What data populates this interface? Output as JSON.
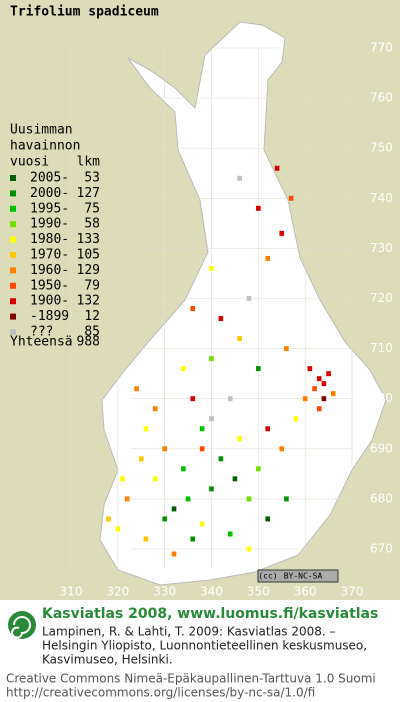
{
  "title": "Trifolium spadiceum",
  "legend": {
    "heading": [
      "Uusimman",
      "havainnon",
      "vuosi"
    ],
    "count_heading": "lkm",
    "rows": [
      {
        "label": "2005-",
        "count": 53,
        "color": "#006000"
      },
      {
        "label": "2000-",
        "count": 127,
        "color": "#009000"
      },
      {
        "label": "1995-",
        "count": 75,
        "color": "#00c000"
      },
      {
        "label": "1990-",
        "count": 58,
        "color": "#70e000"
      },
      {
        "label": "1980-",
        "count": 133,
        "color": "#ffff00"
      },
      {
        "label": "1970-",
        "count": 105,
        "color": "#ffc800"
      },
      {
        "label": "1960-",
        "count": 129,
        "color": "#ff8000"
      },
      {
        "label": "1950-",
        "count": 79,
        "color": "#ff4800"
      },
      {
        "label": "1900-",
        "count": 132,
        "color": "#d80000"
      },
      {
        "label": "-1899",
        "count": 12,
        "color": "#800000"
      },
      {
        "label": "???",
        "count": 85,
        "color": "#c0c0c0"
      }
    ],
    "total_label": "Yhteensä",
    "total": 988
  },
  "map": {
    "xlim": [
      310,
      370
    ],
    "ylim": [
      670,
      770
    ],
    "xticks": [
      310,
      320,
      330,
      340,
      350,
      360,
      370
    ],
    "yticks": [
      670,
      680,
      690,
      700,
      710,
      720,
      730,
      740,
      750,
      760,
      770
    ],
    "cells": [
      [
        363,
        704,
        8
      ],
      [
        364,
        703,
        8
      ],
      [
        362,
        702,
        7
      ],
      [
        365,
        705,
        8
      ],
      [
        366,
        701,
        6
      ],
      [
        361,
        706,
        8
      ],
      [
        364,
        700,
        9
      ],
      [
        363,
        698,
        7
      ],
      [
        360,
        700,
        6
      ],
      [
        358,
        696,
        4
      ],
      [
        330,
        676,
        1
      ],
      [
        332,
        678,
        0
      ],
      [
        335,
        680,
        2
      ],
      [
        340,
        682,
        1
      ],
      [
        345,
        684,
        0
      ],
      [
        348,
        680,
        3
      ],
      [
        338,
        675,
        4
      ],
      [
        326,
        672,
        5
      ],
      [
        320,
        674,
        4
      ],
      [
        318,
        676,
        5
      ],
      [
        322,
        680,
        6
      ],
      [
        328,
        684,
        4
      ],
      [
        334,
        686,
        2
      ],
      [
        342,
        688,
        1
      ],
      [
        350,
        686,
        3
      ],
      [
        355,
        690,
        6
      ],
      [
        352,
        694,
        8
      ],
      [
        346,
        692,
        4
      ],
      [
        338,
        690,
        7
      ],
      [
        330,
        690,
        6
      ],
      [
        325,
        688,
        5
      ],
      [
        321,
        684,
        4
      ],
      [
        336,
        672,
        1
      ],
      [
        344,
        673,
        2
      ],
      [
        352,
        676,
        0
      ],
      [
        356,
        680,
        1
      ],
      [
        348,
        670,
        4
      ],
      [
        332,
        669,
        6
      ],
      [
        340,
        696,
        10
      ],
      [
        344,
        700,
        10
      ],
      [
        336,
        700,
        8
      ],
      [
        328,
        698,
        6
      ],
      [
        334,
        706,
        4
      ],
      [
        340,
        708,
        3
      ],
      [
        346,
        712,
        5
      ],
      [
        350,
        706,
        1
      ],
      [
        356,
        710,
        6
      ],
      [
        342,
        716,
        8
      ],
      [
        348,
        720,
        10
      ],
      [
        336,
        718,
        7
      ],
      [
        352,
        728,
        6
      ],
      [
        355,
        733,
        8
      ],
      [
        357,
        740,
        7
      ],
      [
        350,
        738,
        8
      ],
      [
        346,
        744,
        10
      ],
      [
        354,
        746,
        8
      ],
      [
        340,
        726,
        4
      ],
      [
        326,
        694,
        4
      ],
      [
        324,
        702,
        6
      ],
      [
        338,
        694,
        2
      ]
    ]
  },
  "badge": {
    "cc": "(cc)",
    "license": "BY-NC-SA"
  },
  "footer": {
    "brand": "Kasviatlas 2008, www.luomus.fi/kasviatlas",
    "citation": [
      "Lampinen, R. & Lahti, T. 2009: Kasviatlas 2008. –",
      "Helsingin Yliopisto, Luonnontieteellinen keskusmuseo,",
      "Kasvimuseo, Helsinki."
    ],
    "license": [
      "Creative Commons Nimeä-Epäkaupallinen-Tarttuva 1.0 Suomi",
      "http://creativecommons.org/licenses/by-nc-sa/1.0/fi"
    ]
  }
}
